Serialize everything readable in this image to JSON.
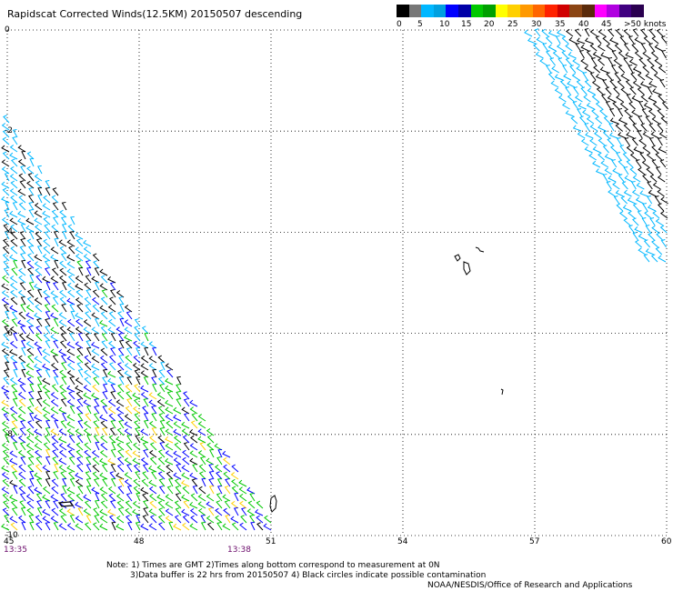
{
  "title": "Rapidscat Corrected Winds(12.5KM) 20150507 descending",
  "legend": {
    "colors": [
      "#000000",
      "#777777",
      "#00b7ff",
      "#00a0e0",
      "#0000ff",
      "#0000a8",
      "#00c800",
      "#00a000",
      "#ffff00",
      "#ffd000",
      "#ff9900",
      "#ff6600",
      "#ff2200",
      "#d00000",
      "#8b4513",
      "#5a2a0a",
      "#ff00ff",
      "#b000e0",
      "#400080",
      "#2a0050"
    ],
    "labels": [
      "0",
      "5",
      "10",
      "15",
      "20",
      "25",
      "30",
      "35",
      "40",
      "45",
      ">50 knots"
    ]
  },
  "map": {
    "lon_ticks": [
      "45",
      "48",
      "51",
      "54",
      "57",
      "60"
    ],
    "lat_ticks": [
      "0",
      "-2",
      "-4",
      "-6",
      "-8",
      "-10"
    ],
    "lon_range": [
      45,
      60
    ],
    "lat_range": [
      -10,
      0
    ]
  },
  "times": {
    "left": "13:35",
    "right": "13:38"
  },
  "notes": {
    "line1": "Note: 1) Times are GMT 2)Times along bottom correspond to measurement at 0N",
    "line2": "3)Data buffer is 22 hrs from 20150507 4) Black circles indicate possible contamination",
    "line3": "NOAA/NESDIS/Office of Research and Applications"
  }
}
